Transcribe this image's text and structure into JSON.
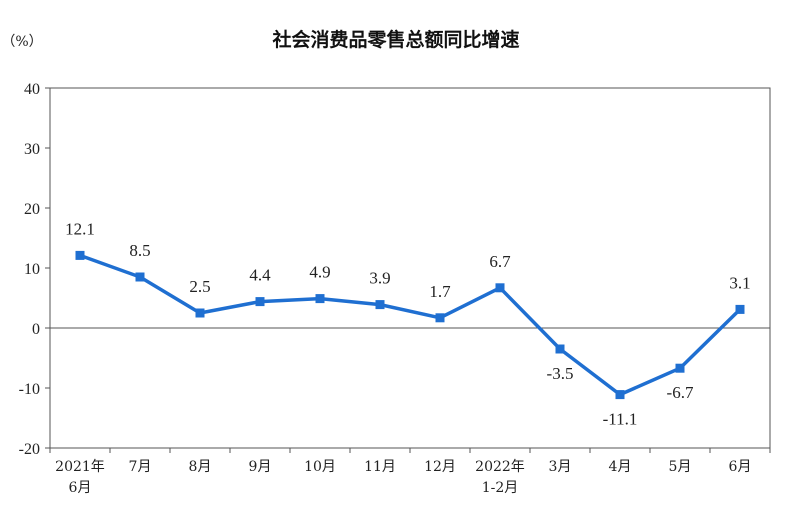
{
  "chart_data": {
    "type": "line",
    "title": "社会消费品零售总额同比增速",
    "unit_label": "（%）",
    "xlabel": "",
    "ylabel": "",
    "categories": [
      [
        "2021年",
        "6月"
      ],
      [
        "7月"
      ],
      [
        "8月"
      ],
      [
        "9月"
      ],
      [
        "10月"
      ],
      [
        "11月"
      ],
      [
        "12月"
      ],
      [
        "2022年",
        "1-2月"
      ],
      [
        "3月"
      ],
      [
        "4月"
      ],
      [
        "5月"
      ],
      [
        "6月"
      ]
    ],
    "series": [
      {
        "color": "#1f6fd1",
        "values": [
          12.1,
          8.5,
          2.5,
          4.4,
          4.9,
          3.9,
          1.7,
          6.7,
          -3.5,
          -11.1,
          -6.7,
          3.1
        ]
      }
    ],
    "data_labels": [
      "12.1",
      "8.5",
      "2.5",
      "4.4",
      "4.9",
      "3.9",
      "1.7",
      "6.7",
      "-3.5",
      "-11.1",
      "-6.7",
      "3.1"
    ],
    "label_position": [
      "above",
      "above",
      "above",
      "above",
      "above",
      "above",
      "above",
      "above",
      "below",
      "below",
      "below",
      "above"
    ],
    "ylim": [
      -20,
      40
    ],
    "yticks": [
      -20,
      -10,
      0,
      10,
      20,
      30,
      40
    ],
    "ytick_labels": [
      "-20",
      "-10",
      "0",
      "10",
      "20",
      "30",
      "40"
    ],
    "grid": false,
    "zero_line": true,
    "legend": "none"
  }
}
